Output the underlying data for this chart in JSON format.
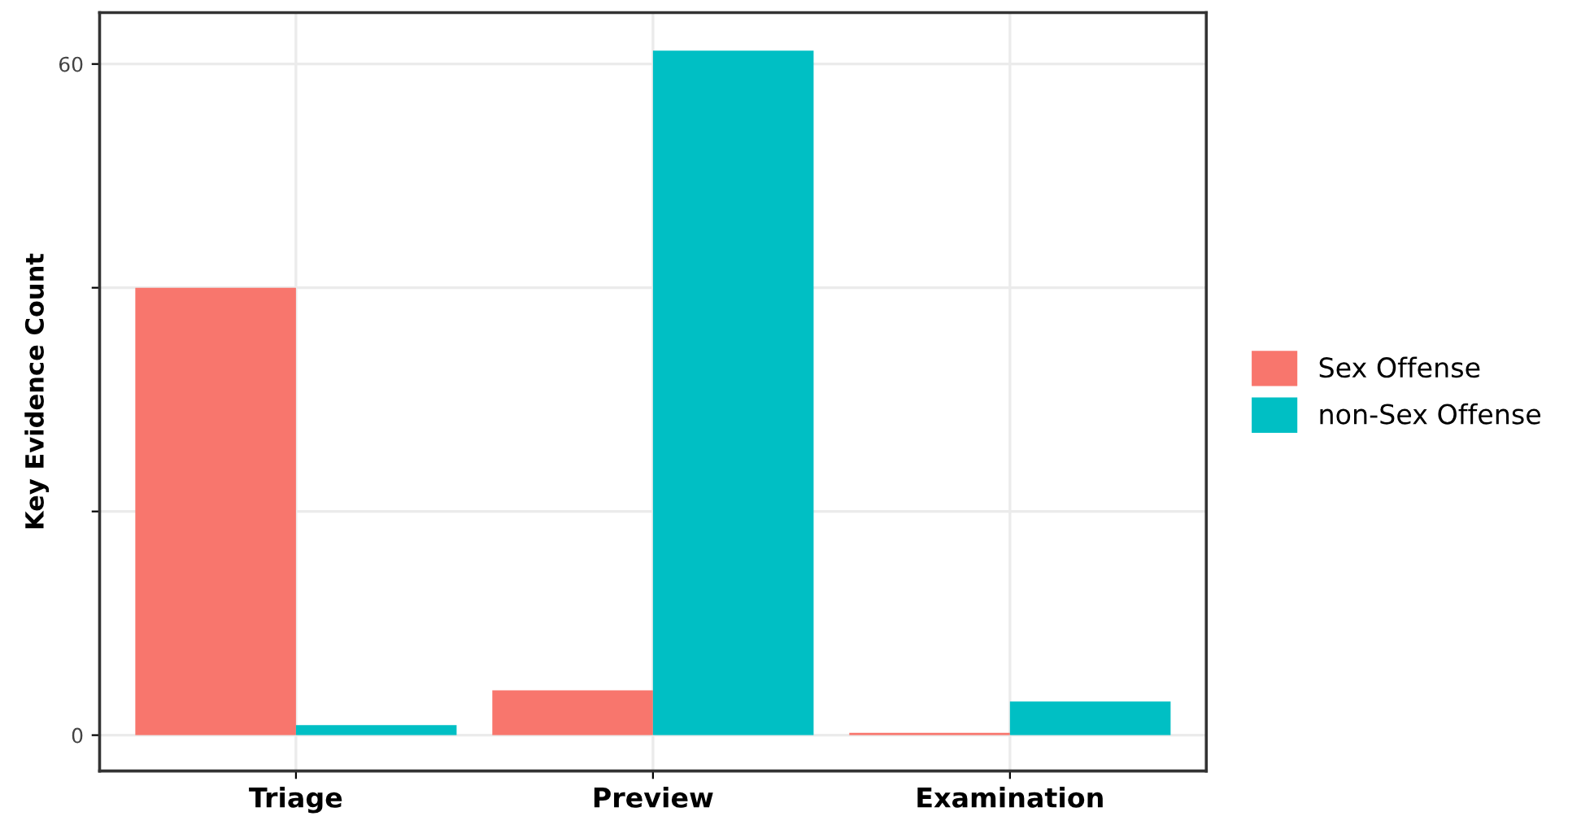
{
  "chart_data": {
    "type": "bar",
    "ylabel": "Key Evidence Count",
    "categories": [
      "Triage",
      "Preview",
      "Examination"
    ],
    "series": [
      {
        "name": "Sex Offense",
        "color": "#f8766d",
        "values": [
          40,
          4,
          0.2
        ]
      },
      {
        "name": "non-Sex Offense",
        "color": "#00bfc4",
        "values": [
          0.9,
          61.2,
          3
        ]
      }
    ],
    "ylim": [
      -3.2,
      64.6
    ],
    "yticks": [
      0,
      {
        "value": 20,
        "label": null
      },
      {
        "value": 40,
        "label": null
      },
      60
    ],
    "grid": true,
    "legend": "right"
  }
}
